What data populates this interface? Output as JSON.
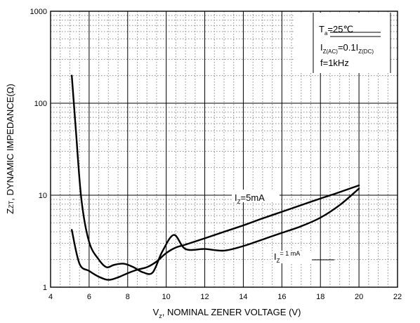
{
  "chart_data": {
    "type": "line",
    "xlabel": "V₂, NOMINAL ZENER VOLTAGE (V)",
    "xlabel_parts": {
      "pre": "V",
      "sub": "z",
      "post": ", NOMINAL ZENER VOLTAGE (V)"
    },
    "ylabel": "Z₂ₜ, DYNAMIC IMPEDANCE(Ω)",
    "ylabel_parts": {
      "pre": "Z",
      "sub": "ZT",
      "post": ", DYNAMIC IMPEDANCE(Ω)"
    },
    "xlim": [
      4,
      22
    ],
    "ylim": [
      1,
      1000
    ],
    "yscale": "log",
    "grid": true,
    "x_ticks": [
      "4",
      "6",
      "8",
      "10",
      "12",
      "14",
      "16",
      "18",
      "20",
      "22"
    ],
    "y_ticks": [
      "1",
      "10",
      "100",
      "1000"
    ],
    "conditions": {
      "ta_main": "T",
      "ta_sub": "a",
      "ta_val": "=25℃",
      "iz_main": "I",
      "iz_sub": "Z(AC)",
      "iz_mid": "=0.1I",
      "iz_sub2": "Z(DC)",
      "freq": "f=1kHz"
    },
    "series": [
      {
        "name": "IZ=5mA",
        "label_main": "I",
        "label_sub": "Z",
        "label_val": "=5mA",
        "x": [
          5.1,
          5.3,
          5.6,
          6.0,
          6.5,
          6.9,
          7.3,
          7.8,
          8.3,
          8.8,
          9.3,
          9.8,
          10.4,
          11.0,
          12.0,
          13.0,
          14.0,
          15.0,
          16.0,
          17.0,
          18.0,
          19.0,
          20.0
        ],
        "values": [
          200,
          55,
          9,
          3.1,
          2.0,
          1.65,
          1.75,
          1.8,
          1.65,
          1.45,
          1.45,
          2.45,
          3.7,
          2.6,
          2.6,
          2.5,
          2.8,
          3.3,
          3.9,
          4.6,
          5.7,
          7.8,
          11.8
        ]
      },
      {
        "name": "IZ=1 mA",
        "label_main": "I",
        "label_sub": "Z",
        "label_val": "= 1  mA",
        "x": [
          5.1,
          5.5,
          6.0,
          6.5,
          7.0,
          7.5,
          8.0,
          8.5,
          9.0,
          9.5,
          10.0,
          10.5,
          11.0,
          12.0,
          13.0,
          14.0,
          15.0,
          16.0,
          17.0,
          18.0,
          19.0,
          20.0
        ],
        "values": [
          4.2,
          1.8,
          1.5,
          1.3,
          1.2,
          1.28,
          1.42,
          1.55,
          1.65,
          1.9,
          2.35,
          2.7,
          2.9,
          3.4,
          4.0,
          4.7,
          5.6,
          6.6,
          7.8,
          9.2,
          10.8,
          12.8
        ]
      }
    ]
  }
}
